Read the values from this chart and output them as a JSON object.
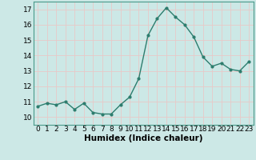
{
  "x": [
    0,
    1,
    2,
    3,
    4,
    5,
    6,
    7,
    8,
    9,
    10,
    11,
    12,
    13,
    14,
    15,
    16,
    17,
    18,
    19,
    20,
    21,
    22,
    23
  ],
  "y": [
    10.7,
    10.9,
    10.8,
    11.0,
    10.5,
    10.9,
    10.3,
    10.2,
    10.2,
    10.8,
    11.3,
    12.5,
    15.3,
    16.4,
    17.1,
    16.5,
    16.0,
    15.2,
    13.9,
    13.3,
    13.5,
    13.1,
    13.0,
    13.6
  ],
  "xlabel": "Humidex (Indice chaleur)",
  "ylim": [
    9.5,
    17.5
  ],
  "xlim": [
    -0.5,
    23.5
  ],
  "yticks": [
    10,
    11,
    12,
    13,
    14,
    15,
    16,
    17
  ],
  "xticks": [
    0,
    1,
    2,
    3,
    4,
    5,
    6,
    7,
    8,
    9,
    10,
    11,
    12,
    13,
    14,
    15,
    16,
    17,
    18,
    19,
    20,
    21,
    22,
    23
  ],
  "xtick_labels": [
    "0",
    "1",
    "2",
    "3",
    "4",
    "5",
    "6",
    "7",
    "8",
    "9",
    "10",
    "11",
    "12",
    "13",
    "14",
    "15",
    "16",
    "17",
    "18",
    "19",
    "20",
    "21",
    "22",
    "23"
  ],
  "line_color": "#2d7d6e",
  "marker_color": "#2d7d6e",
  "bg_color": "#cce8e6",
  "grid_h_color": "#e8c8c8",
  "grid_v_color": "#e8c8c8",
  "xlabel_fontsize": 7.5,
  "tick_fontsize": 6.5,
  "figsize": [
    3.2,
    2.0
  ],
  "dpi": 100
}
